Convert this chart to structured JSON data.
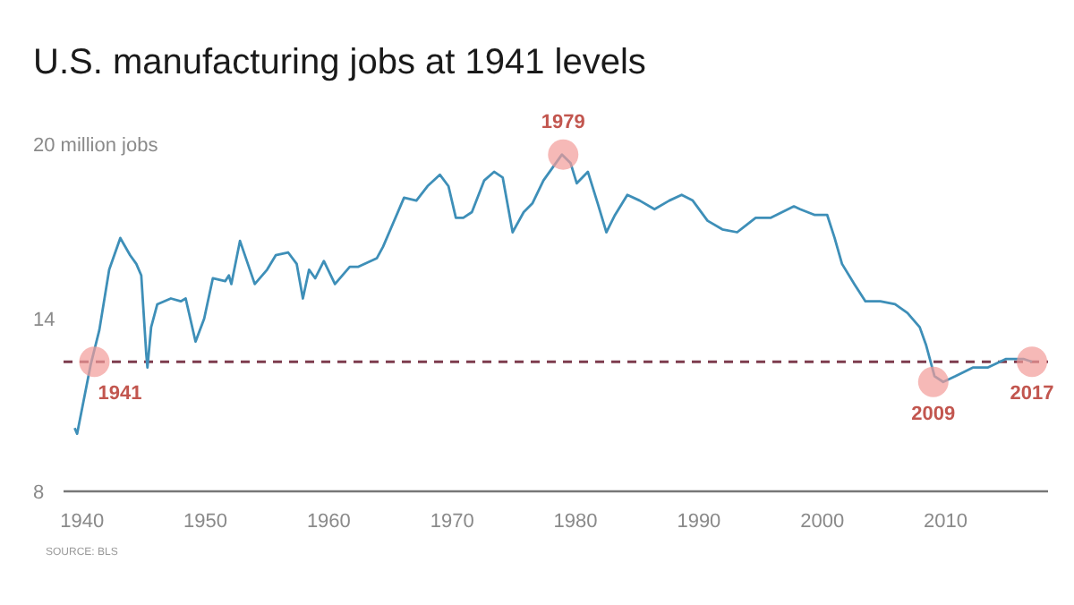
{
  "chart_data": {
    "type": "line",
    "title": "U.S. manufacturing jobs at 1941 levels",
    "x": [
      1939.4,
      1939.6,
      1940.7,
      1941.4,
      1942.2,
      1943.1,
      1943.9,
      1944.4,
      1944.8,
      1945.2,
      1945.3,
      1945.6,
      1946.1,
      1947.2,
      1948.0,
      1948.4,
      1949.2,
      1949.9,
      1950.6,
      1951.6,
      1951.9,
      1952.1,
      1952.8,
      1954.0,
      1955.0,
      1955.7,
      1956.7,
      1957.4,
      1957.9,
      1958.4,
      1958.9,
      1959.6,
      1960.5,
      1961.7,
      1962.4,
      1963.9,
      1964.4,
      1966.1,
      1967.1,
      1968.0,
      1969.0,
      1969.7,
      1970.3,
      1970.9,
      1971.6,
      1972.6,
      1973.4,
      1974.1,
      1974.9,
      1975.8,
      1976.5,
      1977.4,
      1978.9,
      1979.6,
      1980.1,
      1981.0,
      1981.8,
      1982.5,
      1983.2,
      1984.2,
      1985.2,
      1986.4,
      1987.6,
      1988.6,
      1989.5,
      1990.7,
      1991.9,
      1993.1,
      1994.6,
      1995.8,
      1997.7,
      1998.2,
      1999.4,
      2000.4,
      2001.0,
      2001.6,
      2002.6,
      2003.5,
      2004.7,
      2005.9,
      2006.9,
      2007.9,
      2008.4,
      2009.1,
      2009.8,
      2010.8,
      2012.2,
      2013.4,
      2014.9,
      2016.3,
      2017.0
    ],
    "series": [
      {
        "color": "#3e8fb8",
        "values": [
          10.2,
          10.0,
          12.4,
          13.6,
          15.7,
          16.8,
          16.2,
          15.9,
          15.5,
          12.8,
          12.3,
          13.7,
          14.5,
          14.7,
          14.6,
          14.7,
          13.2,
          14.0,
          15.4,
          15.3,
          15.5,
          15.2,
          16.7,
          15.2,
          15.7,
          16.2,
          16.3,
          15.9,
          14.7,
          15.7,
          15.4,
          16.0,
          15.2,
          15.8,
          15.8,
          16.1,
          16.5,
          18.2,
          18.1,
          18.6,
          19.0,
          18.6,
          17.5,
          17.5,
          17.7,
          18.8,
          19.1,
          18.9,
          17.0,
          17.7,
          18.0,
          18.8,
          19.7,
          19.4,
          18.7,
          19.1,
          18.0,
          17.0,
          17.6,
          18.3,
          18.1,
          17.8,
          18.1,
          18.3,
          18.1,
          17.4,
          17.1,
          17.0,
          17.5,
          17.5,
          17.9,
          17.8,
          17.6,
          17.6,
          16.8,
          15.9,
          15.2,
          14.6,
          14.6,
          14.5,
          14.2,
          13.7,
          13.1,
          12.0,
          11.8,
          12.0,
          12.3,
          12.3,
          12.6,
          12.6,
          12.5
        ]
      }
    ],
    "xlim": [
      1938.5,
      2018.3
    ],
    "xticks": [
      1940,
      1950,
      1960,
      1970,
      1980,
      1990,
      2000,
      2010
    ],
    "ylim": [
      8,
      20
    ],
    "yticks": [
      8,
      14,
      {
        "value": 20,
        "label": "20 million jobs"
      }
    ],
    "ref_lines": [
      {
        "axis": "y",
        "value": 12.5,
        "color": "#7d3c4e",
        "line_style": "dashed"
      }
    ],
    "annotations": [
      {
        "text": "1941",
        "x": 1941,
        "y": 12.5
      },
      {
        "text": "1979",
        "x": 1979,
        "y": 19.7
      },
      {
        "text": "2009",
        "x": 2009,
        "y": 11.8
      },
      {
        "text": "2017",
        "x": 2017,
        "y": 12.5
      },
      "SOURCE: BLS"
    ]
  }
}
